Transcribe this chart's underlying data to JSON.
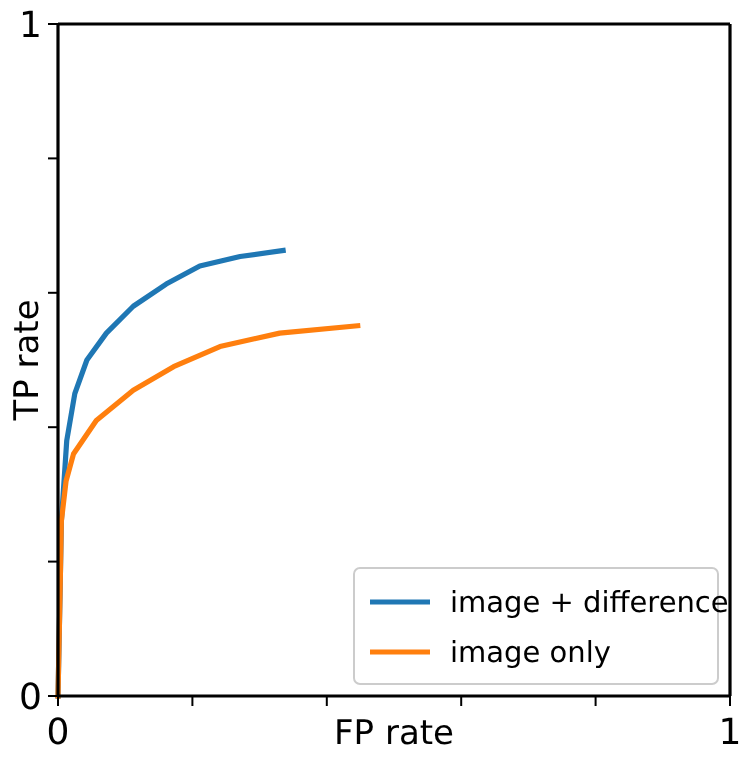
{
  "chart_data": {
    "type": "line",
    "xlabel": "FP rate",
    "ylabel": "TP rate",
    "xlim": [
      0,
      1
    ],
    "ylim": [
      0,
      1
    ],
    "xticks": [
      0,
      {
        "value": 0.2,
        "label": null
      },
      {
        "value": 0.4,
        "label": null
      },
      {
        "value": 0.6,
        "label": null
      },
      {
        "value": 0.8,
        "label": null
      },
      1
    ],
    "yticks": [
      0,
      {
        "value": 0.2,
        "label": null
      },
      {
        "value": 0.4,
        "label": null
      },
      {
        "value": 0.6,
        "label": null
      },
      {
        "value": 0.8,
        "label": null
      },
      1
    ],
    "legend": "bottom right",
    "grid": false,
    "series": [
      {
        "name": "image + difference",
        "color": "#1f77b4",
        "x": [
          0,
          0.003,
          0.005,
          0.013,
          0.025,
          0.043,
          0.072,
          0.112,
          0.161,
          0.211,
          0.271,
          0.335
        ],
        "values": [
          0,
          0.15,
          0.26,
          0.38,
          0.45,
          0.5,
          0.54,
          0.58,
          0.613,
          0.64,
          0.654,
          0.663
        ]
      },
      {
        "name": "image only",
        "color": "#ff7f0e",
        "x": [
          0,
          0.003,
          0.005,
          0.012,
          0.023,
          0.057,
          0.112,
          0.172,
          0.241,
          0.33,
          0.446
        ],
        "values": [
          0,
          0.15,
          0.26,
          0.32,
          0.36,
          0.41,
          0.455,
          0.49,
          0.52,
          0.54,
          0.551
        ]
      }
    ]
  }
}
